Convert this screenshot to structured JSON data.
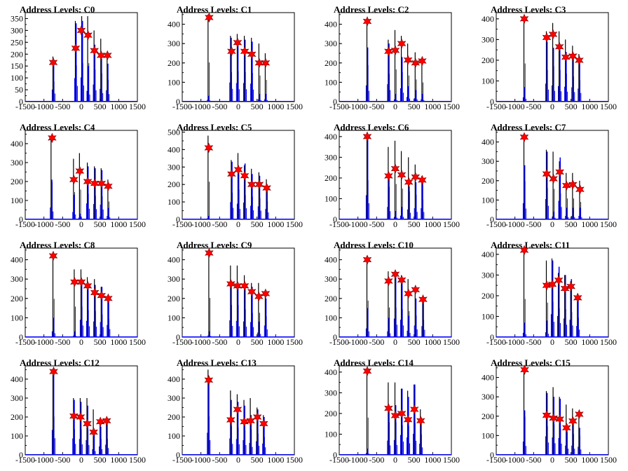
{
  "chart_data": [
    {
      "type": "bar",
      "title": "Address Levels: C0",
      "x_ticks": [
        -1500,
        -1000,
        -500,
        0,
        500,
        1000,
        1500
      ],
      "y_ticks": [
        0,
        50,
        100,
        150,
        200,
        250,
        300,
        350
      ],
      "ylim": [
        0,
        375
      ],
      "xlim": [
        -1500,
        1500
      ],
      "peaks_x": [
        -750,
        -150,
        20,
        180,
        350,
        530,
        700
      ],
      "blue_peaks": [
        170,
        330,
        340,
        150,
        240,
        180,
        160
      ],
      "black_peaks": [
        190,
        340,
        360,
        360,
        300,
        265,
        205
      ],
      "stars": [
        {
          "x": -750,
          "y": 165
        },
        {
          "x": -150,
          "y": 225
        },
        {
          "x": 0,
          "y": 300
        },
        {
          "x": 180,
          "y": 280
        },
        {
          "x": 350,
          "y": 215
        },
        {
          "x": 530,
          "y": 195
        },
        {
          "x": 700,
          "y": 195
        }
      ]
    },
    {
      "type": "bar",
      "title": "Address Levels: C1",
      "x_ticks": [
        -1500,
        -1000,
        -500,
        0,
        500,
        1000,
        1500
      ],
      "y_ticks": [
        0,
        100,
        200,
        300,
        400
      ],
      "ylim": [
        0,
        460
      ],
      "xlim": [
        -1500,
        1500
      ],
      "peaks_x": [
        -800,
        -200,
        -20,
        170,
        360,
        560,
        730
      ],
      "blue_peaks": [
        30,
        330,
        320,
        320,
        310,
        40,
        40
      ],
      "black_peaks": [
        450,
        340,
        350,
        340,
        330,
        300,
        250
      ],
      "stars": [
        {
          "x": -780,
          "y": 435
        },
        {
          "x": -180,
          "y": 260
        },
        {
          "x": -20,
          "y": 305
        },
        {
          "x": 170,
          "y": 260
        },
        {
          "x": 360,
          "y": 245
        },
        {
          "x": 560,
          "y": 200
        },
        {
          "x": 730,
          "y": 200
        }
      ]
    },
    {
      "type": "bar",
      "title": "Address Levels: C2",
      "x_ticks": [
        -1500,
        -1000,
        -500,
        0,
        500,
        1000,
        1500
      ],
      "y_ticks": [
        0,
        100,
        200,
        300,
        400
      ],
      "ylim": [
        0,
        460
      ],
      "xlim": [
        -1500,
        1500
      ],
      "peaks_x": [
        -750,
        -180,
        0,
        170,
        340,
        540,
        720
      ],
      "blue_peaks": [
        280,
        300,
        40,
        230,
        80,
        60,
        40
      ],
      "black_peaks": [
        420,
        320,
        370,
        340,
        300,
        255,
        220
      ],
      "stars": [
        {
          "x": -750,
          "y": 415
        },
        {
          "x": -180,
          "y": 260
        },
        {
          "x": 0,
          "y": 265
        },
        {
          "x": 170,
          "y": 300
        },
        {
          "x": 340,
          "y": 215
        },
        {
          "x": 540,
          "y": 200
        },
        {
          "x": 720,
          "y": 210
        }
      ]
    },
    {
      "type": "bar",
      "title": "Address Levels: C3",
      "x_ticks": [
        -1500,
        -1000,
        -500,
        0,
        500,
        1000,
        1500
      ],
      "y_ticks": [
        0,
        100,
        200,
        300,
        400
      ],
      "ylim": [
        0,
        430
      ],
      "xlim": [
        -1500,
        1500
      ],
      "peaks_x": [
        -750,
        -150,
        20,
        190,
        360,
        550,
        720
      ],
      "blue_peaks": [
        70,
        290,
        260,
        250,
        240,
        230,
        210
      ],
      "black_peaks": [
        410,
        340,
        380,
        340,
        300,
        270,
        230
      ],
      "stars": [
        {
          "x": -750,
          "y": 400
        },
        {
          "x": -150,
          "y": 310
        },
        {
          "x": 20,
          "y": 325
        },
        {
          "x": 190,
          "y": 265
        },
        {
          "x": 360,
          "y": 215
        },
        {
          "x": 550,
          "y": 220
        },
        {
          "x": 720,
          "y": 200
        }
      ]
    },
    {
      "type": "bar",
      "title": "Address Levels: C4",
      "x_ticks": [
        -1500,
        -1000,
        -500,
        0,
        500,
        1000,
        1500
      ],
      "y_ticks": [
        0,
        100,
        200,
        300,
        400
      ],
      "ylim": [
        0,
        470
      ],
      "xlim": [
        -1500,
        1500
      ],
      "peaks_x": [
        -800,
        -200,
        -40,
        170,
        360,
        540,
        720
      ],
      "blue_peaks": [
        210,
        130,
        30,
        280,
        270,
        260,
        60
      ],
      "black_peaks": [
        440,
        320,
        350,
        300,
        280,
        270,
        210
      ],
      "stars": [
        {
          "x": -780,
          "y": 430
        },
        {
          "x": -200,
          "y": 210
        },
        {
          "x": -40,
          "y": 255
        },
        {
          "x": 170,
          "y": 200
        },
        {
          "x": 360,
          "y": 190
        },
        {
          "x": 540,
          "y": 190
        },
        {
          "x": 720,
          "y": 175
        }
      ]
    },
    {
      "type": "bar",
      "title": "Address Levels: C5",
      "x_ticks": [
        -1500,
        -1000,
        -500,
        0,
        500,
        1000,
        1500
      ],
      "y_ticks": [
        0,
        100,
        200,
        300,
        400,
        500
      ],
      "ylim": [
        0,
        510
      ],
      "xlim": [
        -1500,
        1500
      ],
      "peaks_x": [
        -800,
        -180,
        0,
        170,
        360,
        560,
        760
      ],
      "blue_peaks": [
        20,
        330,
        300,
        320,
        260,
        250,
        200
      ],
      "black_peaks": [
        480,
        340,
        380,
        310,
        290,
        270,
        230
      ],
      "stars": [
        {
          "x": -790,
          "y": 410
        },
        {
          "x": -180,
          "y": 260
        },
        {
          "x": 0,
          "y": 285
        },
        {
          "x": 170,
          "y": 250
        },
        {
          "x": 360,
          "y": 200
        },
        {
          "x": 560,
          "y": 200
        },
        {
          "x": 760,
          "y": 180
        }
      ]
    },
    {
      "type": "bar",
      "title": "Address Levels: C6",
      "x_ticks": [
        -1500,
        -1000,
        -500,
        0,
        500,
        1000,
        1500
      ],
      "y_ticks": [
        0,
        100,
        200,
        300,
        400
      ],
      "ylim": [
        0,
        430
      ],
      "xlim": [
        -1500,
        1500
      ],
      "peaks_x": [
        -750,
        -180,
        0,
        170,
        360,
        540,
        720
      ],
      "blue_peaks": [
        390,
        200,
        40,
        60,
        160,
        180,
        180
      ],
      "black_peaks": [
        420,
        350,
        380,
        330,
        300,
        265,
        210
      ],
      "stars": [
        {
          "x": -750,
          "y": 400
        },
        {
          "x": -180,
          "y": 210
        },
        {
          "x": 0,
          "y": 245
        },
        {
          "x": 170,
          "y": 215
        },
        {
          "x": 360,
          "y": 180
        },
        {
          "x": 540,
          "y": 205
        },
        {
          "x": 720,
          "y": 190
        }
      ]
    },
    {
      "type": "bar",
      "title": "Address Levels: C7",
      "x_ticks": [
        -1500,
        -1000,
        -500,
        0,
        500,
        1000,
        1500
      ],
      "y_ticks": [
        0,
        100,
        200,
        300,
        400
      ],
      "ylim": [
        0,
        460
      ],
      "xlim": [
        -1500,
        1500
      ],
      "peaks_x": [
        -750,
        -150,
        30,
        200,
        380,
        550,
        740
      ],
      "blue_peaks": [
        280,
        350,
        40,
        320,
        60,
        60,
        60
      ],
      "black_peaks": [
        440,
        360,
        350,
        300,
        240,
        240,
        200
      ],
      "stars": [
        {
          "x": -750,
          "y": 425
        },
        {
          "x": -150,
          "y": 235
        },
        {
          "x": 30,
          "y": 210
        },
        {
          "x": 200,
          "y": 245
        },
        {
          "x": 380,
          "y": 175
        },
        {
          "x": 550,
          "y": 180
        },
        {
          "x": 740,
          "y": 155
        }
      ]
    },
    {
      "type": "bar",
      "title": "Address Levels: C8",
      "x_ticks": [
        -1500,
        -1000,
        -500,
        0,
        500,
        1000,
        1500
      ],
      "y_ticks": [
        0,
        100,
        200,
        300,
        400
      ],
      "ylim": [
        0,
        460
      ],
      "xlim": [
        -1500,
        1500
      ],
      "peaks_x": [
        -750,
        -180,
        0,
        170,
        360,
        540,
        720
      ],
      "blue_peaks": [
        100,
        30,
        300,
        280,
        270,
        260,
        210
      ],
      "black_peaks": [
        440,
        350,
        350,
        310,
        300,
        260,
        210
      ],
      "stars": [
        {
          "x": -750,
          "y": 420
        },
        {
          "x": -180,
          "y": 285
        },
        {
          "x": 0,
          "y": 285
        },
        {
          "x": 170,
          "y": 265
        },
        {
          "x": 360,
          "y": 230
        },
        {
          "x": 540,
          "y": 215
        },
        {
          "x": 720,
          "y": 200
        }
      ]
    },
    {
      "type": "bar",
      "title": "Address Levels: C9",
      "x_ticks": [
        -1500,
        -1000,
        -500,
        0,
        500,
        1000,
        1500
      ],
      "y_ticks": [
        0,
        100,
        200,
        300,
        400
      ],
      "ylim": [
        0,
        460
      ],
      "xlim": [
        -1500,
        1500
      ],
      "peaks_x": [
        -780,
        -200,
        -20,
        170,
        360,
        550,
        730
      ],
      "blue_peaks": [
        30,
        290,
        280,
        270,
        260,
        80,
        200
      ],
      "black_peaks": [
        450,
        370,
        370,
        320,
        280,
        280,
        240
      ],
      "stars": [
        {
          "x": -780,
          "y": 435
        },
        {
          "x": -200,
          "y": 275
        },
        {
          "x": -20,
          "y": 265
        },
        {
          "x": 170,
          "y": 265
        },
        {
          "x": 360,
          "y": 235
        },
        {
          "x": 550,
          "y": 210
        },
        {
          "x": 730,
          "y": 225
        }
      ]
    },
    {
      "type": "bar",
      "title": "Address Levels: C10",
      "x_ticks": [
        -1500,
        -1000,
        -500,
        0,
        500,
        1000,
        1500
      ],
      "y_ticks": [
        0,
        100,
        200,
        300,
        400
      ],
      "ylim": [
        0,
        460
      ],
      "xlim": [
        -1500,
        1500
      ],
      "peaks_x": [
        -750,
        -180,
        0,
        170,
        350,
        540,
        740
      ],
      "blue_peaks": [
        150,
        100,
        320,
        300,
        110,
        200,
        190
      ],
      "black_peaks": [
        420,
        340,
        340,
        320,
        300,
        250,
        200
      ],
      "stars": [
        {
          "x": -750,
          "y": 400
        },
        {
          "x": -180,
          "y": 290
        },
        {
          "x": 0,
          "y": 325
        },
        {
          "x": 170,
          "y": 295
        },
        {
          "x": 350,
          "y": 225
        },
        {
          "x": 540,
          "y": 245
        },
        {
          "x": 740,
          "y": 195
        }
      ]
    },
    {
      "type": "bar",
      "title": "Address Levels: C11",
      "x_ticks": [
        -1500,
        -1000,
        -500,
        0,
        500,
        1000,
        1500
      ],
      "y_ticks": [
        0,
        100,
        200,
        300,
        400
      ],
      "ylim": [
        0,
        430
      ],
      "xlim": [
        -1500,
        1500
      ],
      "peaks_x": [
        -750,
        -150,
        0,
        170,
        340,
        500,
        680
      ],
      "blue_peaks": [
        70,
        80,
        370,
        340,
        300,
        280,
        180
      ],
      "black_peaks": [
        410,
        370,
        380,
        310,
        300,
        270,
        210
      ],
      "stars": [
        {
          "x": -750,
          "y": 420
        },
        {
          "x": -150,
          "y": 250
        },
        {
          "x": 0,
          "y": 255
        },
        {
          "x": 170,
          "y": 275
        },
        {
          "x": 340,
          "y": 235
        },
        {
          "x": 500,
          "y": 245
        },
        {
          "x": 680,
          "y": 190
        }
      ]
    },
    {
      "type": "bar",
      "title": "Address Levels: C12",
      "x_ticks": [
        -1500,
        -1000,
        -500,
        0,
        500,
        1000,
        1500
      ],
      "y_ticks": [
        0,
        100,
        200,
        300,
        400
      ],
      "ylim": [
        0,
        470
      ],
      "xlim": [
        -1500,
        1500
      ],
      "peaks_x": [
        -750,
        -200,
        -20,
        160,
        330,
        510,
        680
      ],
      "blue_peaks": [
        440,
        290,
        280,
        260,
        100,
        150,
        180
      ],
      "black_peaks": [
        450,
        300,
        300,
        300,
        240,
        190,
        190
      ],
      "stars": [
        {
          "x": -740,
          "y": 440
        },
        {
          "x": -200,
          "y": 205
        },
        {
          "x": -20,
          "y": 200
        },
        {
          "x": 160,
          "y": 165
        },
        {
          "x": 330,
          "y": 120
        },
        {
          "x": 510,
          "y": 175
        },
        {
          "x": 680,
          "y": 180
        }
      ]
    },
    {
      "type": "bar",
      "title": "Address Levels: C13",
      "x_ticks": [
        -1500,
        -1000,
        -500,
        0,
        500,
        1000,
        1500
      ],
      "y_ticks": [
        0,
        100,
        200,
        300,
        400
      ],
      "ylim": [
        0,
        470
      ],
      "xlim": [
        -1500,
        1500
      ],
      "peaks_x": [
        -800,
        -200,
        -20,
        160,
        330,
        510,
        680
      ],
      "blue_peaks": [
        390,
        290,
        280,
        260,
        210,
        240,
        200
      ],
      "black_peaks": [
        450,
        340,
        320,
        290,
        300,
        250,
        210
      ],
      "stars": [
        {
          "x": -790,
          "y": 395
        },
        {
          "x": -200,
          "y": 185
        },
        {
          "x": -20,
          "y": 240
        },
        {
          "x": 160,
          "y": 175
        },
        {
          "x": 330,
          "y": 180
        },
        {
          "x": 510,
          "y": 200
        },
        {
          "x": 680,
          "y": 165
        }
      ]
    },
    {
      "type": "bar",
      "title": "Address Levels: C14",
      "x_ticks": [
        -1500,
        -1000,
        -500,
        0,
        500,
        1000,
        1500
      ],
      "y_ticks": [
        0,
        100,
        200,
        300,
        400
      ],
      "ylim": [
        0,
        430
      ],
      "xlim": [
        -1500,
        1500
      ],
      "peaks_x": [
        -750,
        -180,
        0,
        170,
        340,
        510,
        680
      ],
      "blue_peaks": [
        30,
        230,
        240,
        320,
        280,
        340,
        180
      ],
      "black_peaks": [
        400,
        350,
        350,
        320,
        310,
        340,
        220
      ],
      "stars": [
        {
          "x": -750,
          "y": 405
        },
        {
          "x": -180,
          "y": 225
        },
        {
          "x": 0,
          "y": 190
        },
        {
          "x": 170,
          "y": 200
        },
        {
          "x": 340,
          "y": 170
        },
        {
          "x": 510,
          "y": 220
        },
        {
          "x": 680,
          "y": 165
        }
      ]
    },
    {
      "type": "bar",
      "title": "Address Levels: C15",
      "x_ticks": [
        -1500,
        -1000,
        -500,
        0,
        500,
        1000,
        1500
      ],
      "y_ticks": [
        0,
        100,
        200,
        300,
        400
      ],
      "ylim": [
        0,
        460
      ],
      "xlim": [
        -1500,
        1500
      ],
      "peaks_x": [
        -750,
        -150,
        30,
        200,
        380,
        550,
        720
      ],
      "blue_peaks": [
        230,
        320,
        300,
        290,
        160,
        160,
        140
      ],
      "black_peaks": [
        440,
        330,
        350,
        300,
        260,
        240,
        220
      ],
      "stars": [
        {
          "x": -740,
          "y": 440
        },
        {
          "x": -150,
          "y": 205
        },
        {
          "x": 30,
          "y": 190
        },
        {
          "x": 200,
          "y": 185
        },
        {
          "x": 380,
          "y": 140
        },
        {
          "x": 550,
          "y": 175
        },
        {
          "x": 720,
          "y": 210
        }
      ]
    }
  ],
  "colors": {
    "blue": "#0000ff",
    "black": "#000000",
    "star": "#ff0000",
    "axis": "#000000"
  }
}
